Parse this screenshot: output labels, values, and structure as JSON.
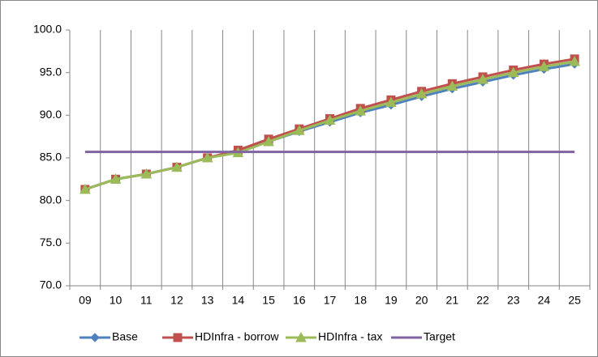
{
  "chart_data": {
    "type": "line",
    "categories": [
      "09",
      "10",
      "11",
      "12",
      "13",
      "14",
      "15",
      "16",
      "17",
      "18",
      "19",
      "20",
      "21",
      "22",
      "23",
      "24",
      "25"
    ],
    "series": [
      {
        "name": "Base",
        "color": "#4f81bd",
        "marker": "diamond",
        "values": [
          81.3,
          82.5,
          83.1,
          83.9,
          85.0,
          85.7,
          86.9,
          88.1,
          89.2,
          90.3,
          91.2,
          92.2,
          93.1,
          93.9,
          94.7,
          95.4,
          96.0
        ]
      },
      {
        "name": "HDInfra - borrow",
        "color": "#c0504d",
        "marker": "square",
        "values": [
          81.3,
          82.5,
          83.1,
          83.9,
          85.0,
          85.9,
          87.2,
          88.4,
          89.6,
          90.8,
          91.8,
          92.8,
          93.7,
          94.5,
          95.3,
          96.0,
          96.6
        ]
      },
      {
        "name": "HDInfra - tax",
        "color": "#9bbb59",
        "marker": "triangle",
        "values": [
          81.3,
          82.5,
          83.1,
          83.9,
          85.0,
          85.6,
          86.9,
          88.2,
          89.4,
          90.5,
          91.5,
          92.5,
          93.4,
          94.2,
          95.0,
          95.7,
          96.3
        ]
      },
      {
        "name": "Target",
        "color": "#8064a2",
        "marker": "none",
        "values": [
          85.7,
          85.7,
          85.7,
          85.7,
          85.7,
          85.7,
          85.7,
          85.7,
          85.7,
          85.7,
          85.7,
          85.7,
          85.7,
          85.7,
          85.7,
          85.7,
          85.7
        ]
      }
    ],
    "ylim": [
      70,
      100
    ],
    "yticks": [
      {
        "value": 70,
        "label": "70.0"
      },
      {
        "value": 75,
        "label": "75.0"
      },
      {
        "value": 80,
        "label": "80.0"
      },
      {
        "value": 85,
        "label": "85.0"
      },
      {
        "value": 90,
        "label": "90.0"
      },
      {
        "value": 95,
        "label": "95.0"
      },
      {
        "value": 100,
        "label": "100.0"
      }
    ],
    "legend": "bottom",
    "grid": "vertical"
  }
}
